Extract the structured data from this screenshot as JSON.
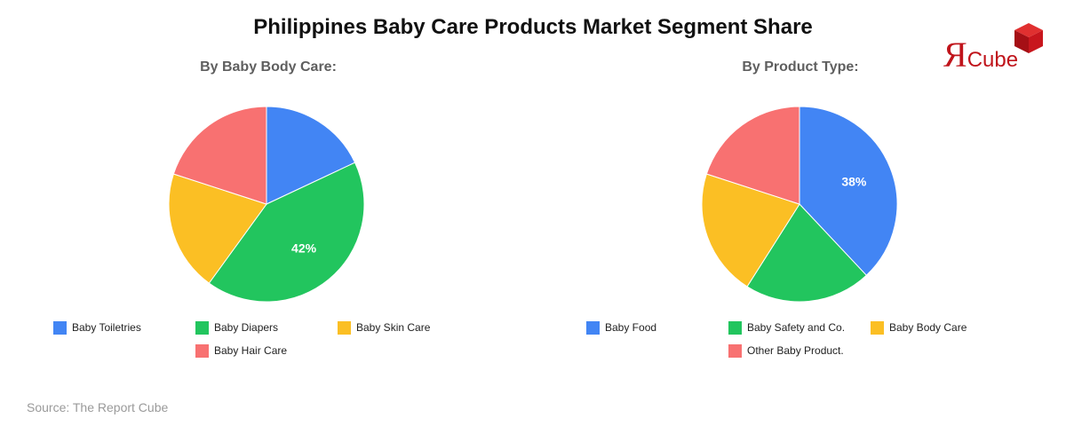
{
  "title": "Philippines Baby Care Products Market Segment Share",
  "source": "Source: The Report Cube",
  "logo": {
    "letter": "Я",
    "word": "Cube"
  },
  "colors": {
    "blue": "#4285f4",
    "green": "#22c55e",
    "yellow": "#fbbf24",
    "red": "#f87171"
  },
  "chart_data": [
    {
      "type": "pie",
      "title": "By Baby Body Care:",
      "categories": [
        "Baby Toiletries",
        "Baby Diapers",
        "Baby Skin Care",
        "Baby Hair Care"
      ],
      "values": [
        18,
        42,
        20,
        20
      ],
      "colors": [
        "#4285f4",
        "#22c55e",
        "#fbbf24",
        "#f87171"
      ],
      "data_labels": [
        "",
        "42%",
        "",
        ""
      ],
      "legend": "bottom"
    },
    {
      "type": "pie",
      "title": "By Product Type:",
      "categories": [
        "Baby Food",
        "Baby Safety and Co.",
        "Baby Body Care",
        "Other Baby Product."
      ],
      "values": [
        38,
        21,
        21,
        20
      ],
      "colors": [
        "#4285f4",
        "#22c55e",
        "#fbbf24",
        "#f87171"
      ],
      "data_labels": [
        "38%",
        "",
        "",
        ""
      ],
      "legend": "bottom"
    }
  ]
}
